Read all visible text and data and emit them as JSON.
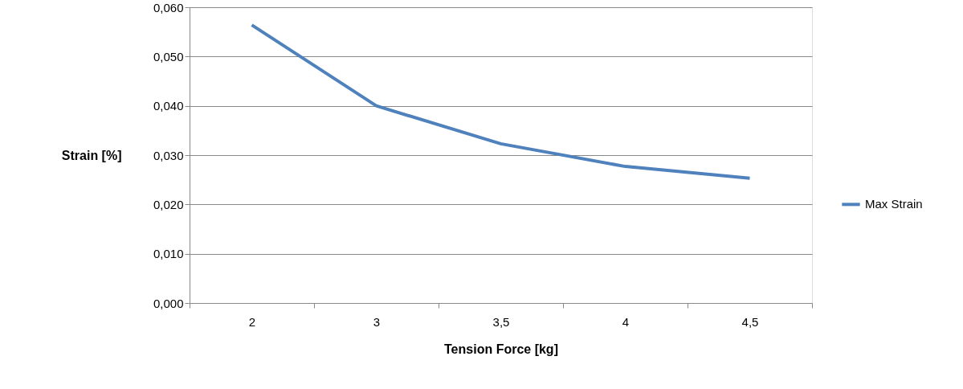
{
  "chart_data": {
    "type": "line",
    "xlabel": "Tension Force  [kg]",
    "ylabel": "Strain [%]",
    "categories": [
      "2",
      "3",
      "3,5",
      "4",
      "4,5"
    ],
    "series": [
      {
        "name": "Max Strain",
        "color": "#4f81bd",
        "values": [
          0.0564,
          0.04,
          0.0323,
          0.0277,
          0.0253
        ]
      }
    ],
    "ylim": [
      0,
      0.06
    ],
    "yticks": [
      {
        "value": 0,
        "label": "0,000"
      },
      {
        "value": 0.01,
        "label": "0,010"
      },
      {
        "value": 0.02,
        "label": "0,020"
      },
      {
        "value": 0.03,
        "label": "0,030"
      },
      {
        "value": 0.04,
        "label": "0,040"
      },
      {
        "value": 0.05,
        "label": "0,050"
      },
      {
        "value": 0.06,
        "label": "0,060"
      }
    ],
    "grid": "y",
    "legend": "right",
    "marker": "none",
    "line_style": "solid"
  }
}
